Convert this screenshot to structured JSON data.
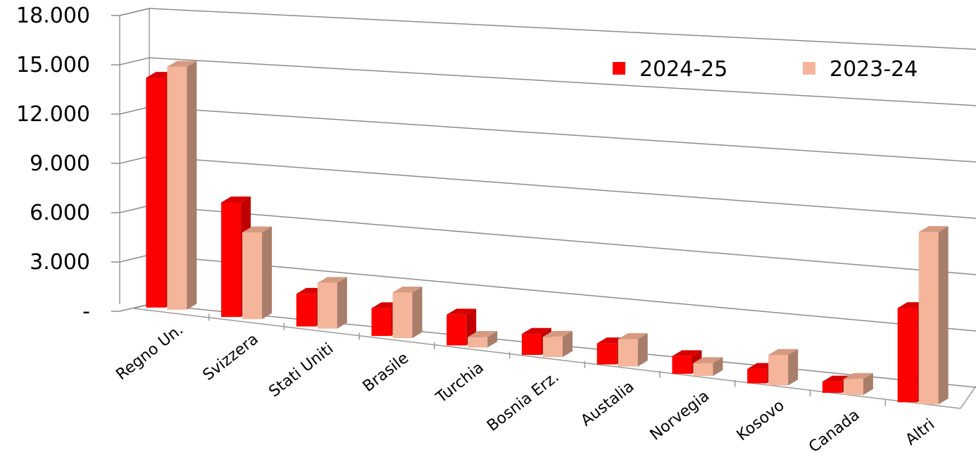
{
  "chart_data": {
    "type": "bar",
    "style": "3d-clustered-column",
    "categories": [
      "Regno Un.",
      "Svizzera",
      "Stati Uniti",
      "Brasile",
      "Turchia",
      "Bosnia Erz.",
      "Austalia",
      "Norvegia",
      "Kosovo",
      "Canada",
      "Altri"
    ],
    "series": [
      {
        "name": "2024-25",
        "color": "#ff0000",
        "side_color": "#c00000",
        "top_color": "#d80000",
        "values": [
          14000,
          7000,
          2000,
          1700,
          1900,
          1300,
          1300,
          1100,
          900,
          700,
          5900
        ]
      },
      {
        "name": "2023-24",
        "color": "#f4b59a",
        "side_color": "#a87d6a",
        "top_color": "#d69a80",
        "values": [
          14800,
          5300,
          2800,
          2800,
          650,
          1250,
          1700,
          800,
          1900,
          1000,
          10800
        ]
      }
    ],
    "yticks": [
      "18.000",
      "15.000",
      "12.000",
      "9.000",
      "6.000",
      "3.000",
      "-"
    ],
    "ylim": [
      0,
      18000
    ],
    "grid": true,
    "legend": "top-right",
    "title": "",
    "xlabel": "",
    "ylabel": ""
  }
}
